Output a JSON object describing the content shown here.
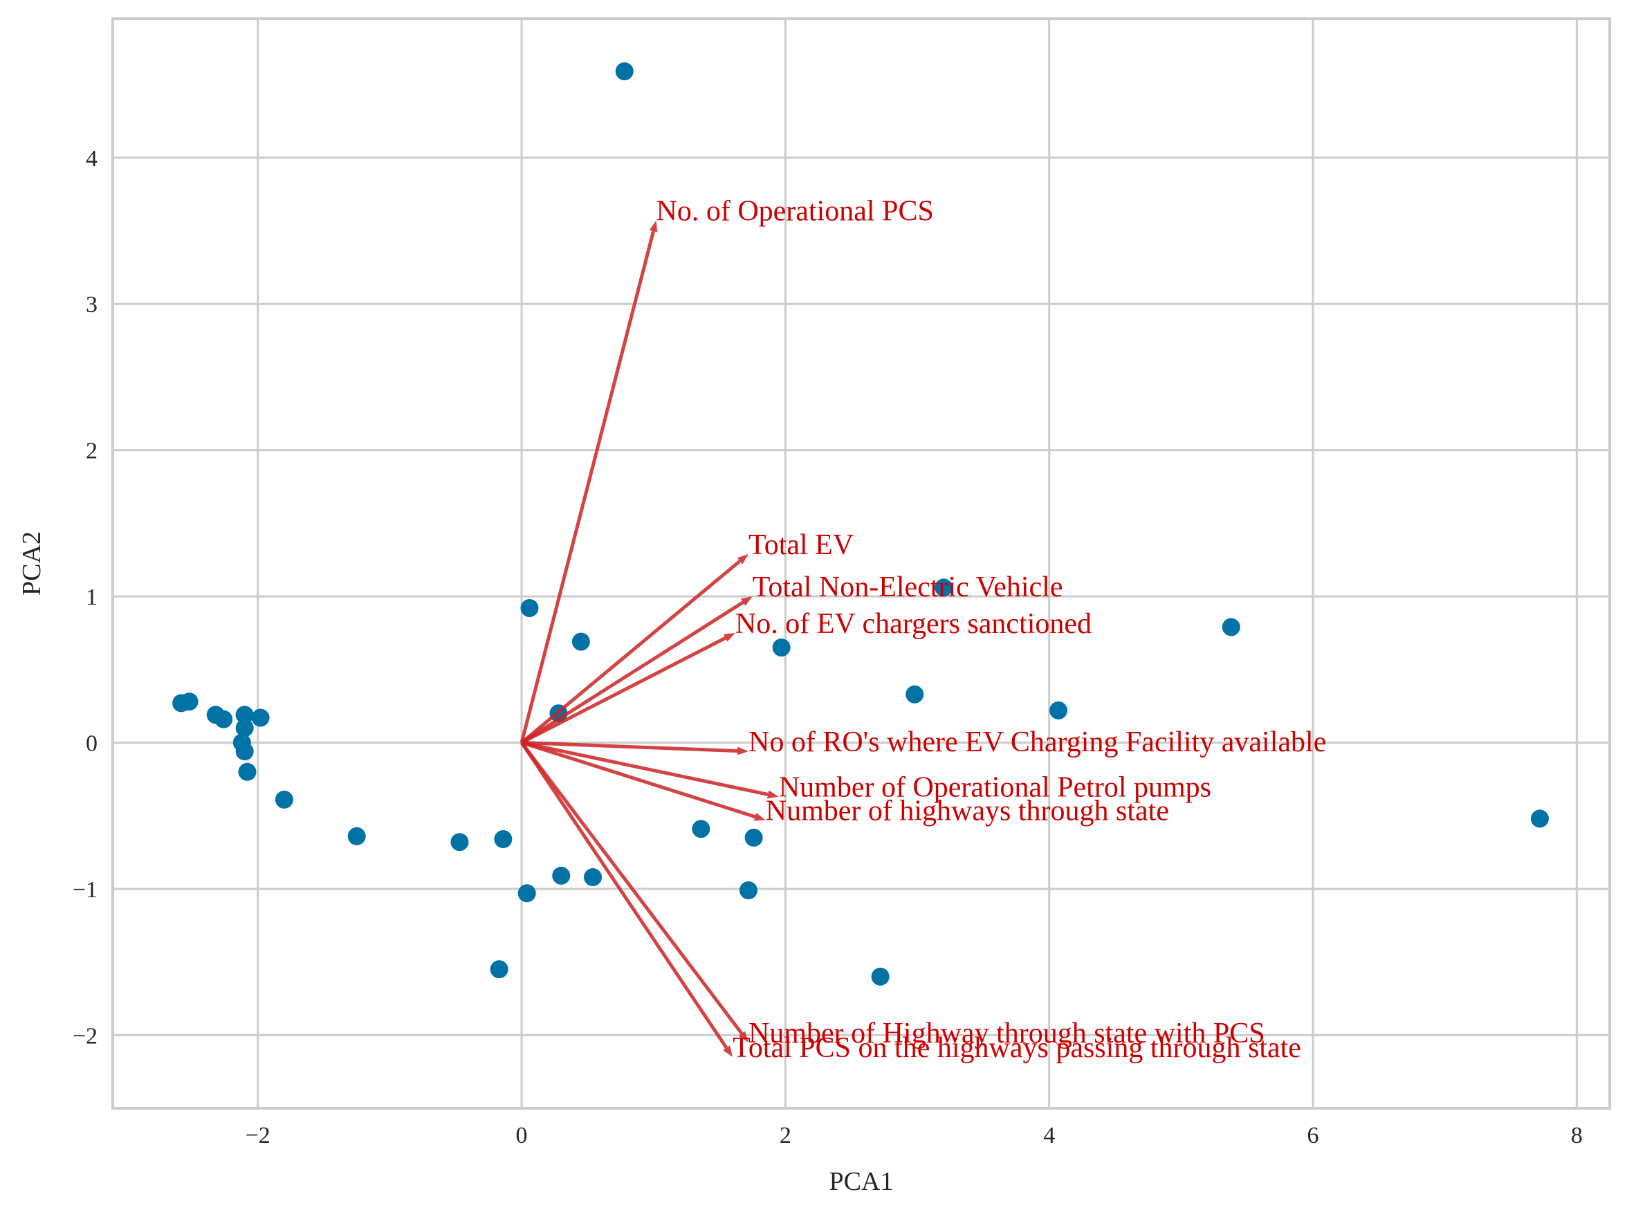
{
  "chart_data": {
    "type": "scatter",
    "title": "",
    "xlabel": "PCA1",
    "ylabel": "PCA2",
    "xlim": [
      -3.1,
      8.25
    ],
    "ylim": [
      -2.5,
      4.95
    ],
    "xticks": [
      -2,
      0,
      2,
      4,
      6,
      8
    ],
    "yticks": [
      -2,
      -1,
      0,
      1,
      2,
      3,
      4
    ],
    "grid": true,
    "colors": {
      "points": "#0072a5",
      "loadings": "#cc2222",
      "loading_text": "#cc0000",
      "grid": "#cccccc"
    },
    "points": [
      {
        "x": 0.78,
        "y": 4.59
      },
      {
        "x": 3.2,
        "y": 1.06
      },
      {
        "x": 5.38,
        "y": 0.79
      },
      {
        "x": 0.06,
        "y": 0.92
      },
      {
        "x": 0.45,
        "y": 0.69
      },
      {
        "x": 1.97,
        "y": 0.65
      },
      {
        "x": 2.98,
        "y": 0.33
      },
      {
        "x": 4.07,
        "y": 0.22
      },
      {
        "x": 0.28,
        "y": 0.2
      },
      {
        "x": -2.58,
        "y": 0.27
      },
      {
        "x": -2.52,
        "y": 0.28
      },
      {
        "x": -2.32,
        "y": 0.19
      },
      {
        "x": -2.26,
        "y": 0.16
      },
      {
        "x": -2.1,
        "y": 0.19
      },
      {
        "x": -1.98,
        "y": 0.17
      },
      {
        "x": -2.1,
        "y": 0.1
      },
      {
        "x": -2.12,
        "y": 0.0
      },
      {
        "x": -2.1,
        "y": -0.06
      },
      {
        "x": -2.08,
        "y": -0.2
      },
      {
        "x": -1.8,
        "y": -0.39
      },
      {
        "x": -1.25,
        "y": -0.64
      },
      {
        "x": -0.47,
        "y": -0.68
      },
      {
        "x": -0.14,
        "y": -0.66
      },
      {
        "x": 1.36,
        "y": -0.59
      },
      {
        "x": 1.76,
        "y": -0.65
      },
      {
        "x": 0.3,
        "y": -0.91
      },
      {
        "x": 0.54,
        "y": -0.92
      },
      {
        "x": 0.04,
        "y": -1.03
      },
      {
        "x": 1.72,
        "y": -1.01
      },
      {
        "x": 7.72,
        "y": -0.52
      },
      {
        "x": -0.17,
        "y": -1.55
      },
      {
        "x": 2.72,
        "y": -1.6
      }
    ],
    "loadings": [
      {
        "label": "No. of Operational PCS",
        "x": 1.02,
        "y": 3.57
      },
      {
        "label": "Total EV",
        "x": 1.72,
        "y": 1.29
      },
      {
        "label": "Total Non-Electric Vehicle",
        "x": 1.75,
        "y": 1.0
      },
      {
        "label": "No. of EV chargers sanctioned",
        "x": 1.62,
        "y": 0.75
      },
      {
        "label": "No of RO's where EV Charging Facility available",
        "x": 1.72,
        "y": -0.06
      },
      {
        "label": "Number of Operational Petrol pumps",
        "x": 1.95,
        "y": -0.37
      },
      {
        "label": "Number of highways through state",
        "x": 1.85,
        "y": -0.53
      },
      {
        "label": "Number of Highway through state with PCS",
        "x": 1.72,
        "y": -2.05
      },
      {
        "label": "Total PCS on the highways passing through state",
        "x": 1.6,
        "y": -2.15
      }
    ]
  }
}
